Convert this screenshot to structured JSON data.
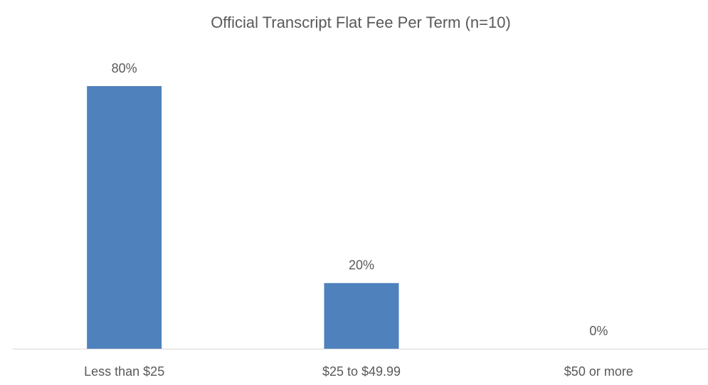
{
  "chart_data": {
    "type": "bar",
    "title": "Official Transcript Flat Fee Per Term (n=10)",
    "categories": [
      "Less than $25",
      "$25 to $49.99",
      "$50 or more"
    ],
    "values": [
      80,
      20,
      0
    ],
    "value_labels": [
      "80%",
      "20%",
      "0%"
    ],
    "color": "#4f81bd"
  }
}
